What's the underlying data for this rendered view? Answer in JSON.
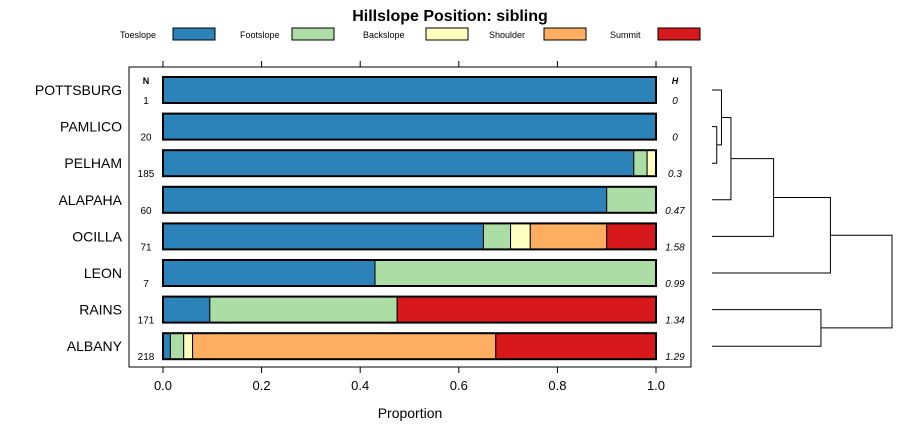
{
  "chart_data": {
    "type": "bar",
    "stacked": true,
    "orientation": "horizontal",
    "title": "Hillslope Position: sibling",
    "xlabel": "Proportion",
    "xlim": [
      0,
      1
    ],
    "x_ticks": [
      "0.0",
      "0.2",
      "0.4",
      "0.6",
      "0.8",
      "1.0"
    ],
    "x_tick_values": [
      0,
      0.2,
      0.4,
      0.6,
      0.8,
      1.0
    ],
    "n_header": "N",
    "h_header": "H",
    "legend": [
      {
        "name": "Toeslope",
        "color": "#2b83ba"
      },
      {
        "name": "Footslope",
        "color": "#abdda4"
      },
      {
        "name": "Backslope",
        "color": "#ffffbf"
      },
      {
        "name": "Shoulder",
        "color": "#fdae61"
      },
      {
        "name": "Summit",
        "color": "#d7191c"
      }
    ],
    "categories": [
      "POTTSBURG",
      "PAMLICO",
      "PELHAM",
      "ALAPAHA",
      "OCILLA",
      "LEON",
      "RAINS",
      "ALBANY"
    ],
    "n": [
      "1",
      "20",
      "185",
      "60",
      "71",
      "7",
      "171",
      "218"
    ],
    "h": [
      "0",
      "0",
      "0.3",
      "0.47",
      "1.58",
      "0.99",
      "1.34",
      "1.29"
    ],
    "series": [
      {
        "name": "Toeslope",
        "values": [
          1.0,
          1.0,
          0.955,
          0.9,
          0.65,
          0.43,
          0.095,
          0.015
        ]
      },
      {
        "name": "Footslope",
        "values": [
          0.0,
          0.0,
          0.027,
          0.1,
          0.055,
          0.57,
          0.38,
          0.027
        ]
      },
      {
        "name": "Backslope",
        "values": [
          0.0,
          0.0,
          0.018,
          0.0,
          0.04,
          0.0,
          0.0,
          0.018
        ]
      },
      {
        "name": "Shoulder",
        "values": [
          0.0,
          0.0,
          0.0,
          0.0,
          0.155,
          0.0,
          0.0,
          0.615
        ]
      },
      {
        "name": "Summit",
        "values": [
          0.0,
          0.0,
          0.0,
          0.0,
          0.1,
          0.0,
          0.525,
          0.325
        ]
      }
    ],
    "dendrogram": {
      "description": "hierarchical clustering of soil series by hillslope position",
      "merges": [
        {
          "a": "PAMLICO",
          "b": "PELHAM",
          "height": 0.01
        },
        {
          "a": "POTTSBURG",
          "b": "m1",
          "height": 0.02
        },
        {
          "a": "m2",
          "b": "ALAPAHA",
          "height": 0.04
        },
        {
          "a": "m3",
          "b": "OCILLA",
          "height": 0.13
        },
        {
          "a": "m4",
          "b": "LEON",
          "height": 0.25
        },
        {
          "a": "RAINS",
          "b": "ALBANY",
          "height": 0.23
        },
        {
          "a": "m5",
          "b": "m6",
          "height": 0.38
        }
      ]
    }
  }
}
